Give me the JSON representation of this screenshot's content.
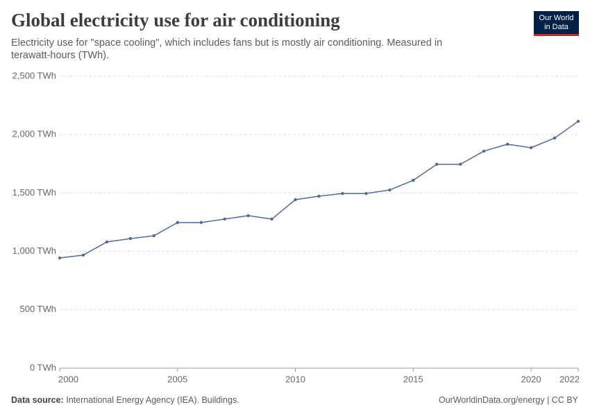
{
  "chart_data": {
    "type": "line",
    "title": "Global electricity use for air conditioning",
    "subtitle": "Electricity use for \"space cooling\", which includes fans but is mostly air conditioning. Measured in terawatt-hours (TWh).",
    "logo": [
      "Our World",
      "in Data"
    ],
    "source_label": "Data source:",
    "source": "International Energy Agency (IEA). Buildings.",
    "footer_right": "OurWorldinData.org/energy | CC BY",
    "x": [
      2000,
      2001,
      2002,
      2003,
      2004,
      2005,
      2006,
      2007,
      2008,
      2009,
      2010,
      2011,
      2012,
      2013,
      2014,
      2015,
      2016,
      2017,
      2018,
      2019,
      2020,
      2021,
      2022
    ],
    "values": [
      944,
      968,
      1081,
      1110,
      1134,
      1247,
      1247,
      1277,
      1306,
      1277,
      1443,
      1473,
      1496,
      1496,
      1526,
      1609,
      1746,
      1746,
      1859,
      1918,
      1888,
      1971,
      2114
    ],
    "color": "#4c6a9c",
    "xlim": [
      2000,
      2022
    ],
    "xticks": [
      2000,
      2005,
      2010,
      2015,
      2020,
      2022
    ],
    "ylim": [
      0,
      2500
    ],
    "yticks": [
      {
        "value": 0,
        "label": "0 TWh"
      },
      {
        "value": 500,
        "label": "500 TWh"
      },
      {
        "value": 1000,
        "label": "1,000 TWh"
      },
      {
        "value": 1500,
        "label": "1,500 TWh"
      },
      {
        "value": 2000,
        "label": "2,000 TWh"
      },
      {
        "value": 2500,
        "label": "2,500 TWh"
      }
    ],
    "grid": true
  }
}
